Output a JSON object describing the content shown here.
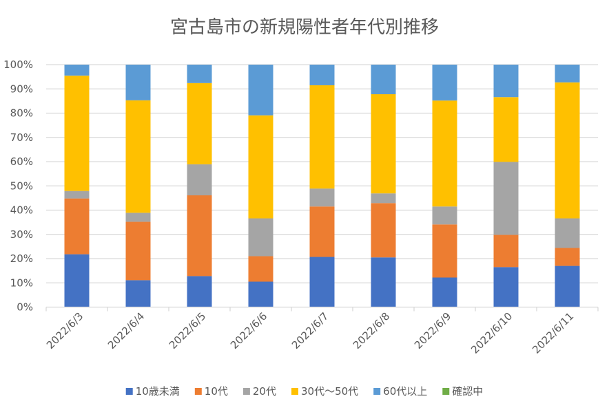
{
  "chart_data": {
    "type": "bar",
    "stacked": "percent",
    "title": "宮古島市の新規陽性者年代別推移",
    "xlabel": "",
    "ylabel": "",
    "ylim": [
      0,
      100
    ],
    "y_ticks": [
      "0%",
      "10%",
      "20%",
      "30%",
      "40%",
      "50%",
      "60%",
      "70%",
      "80%",
      "90%",
      "100%"
    ],
    "grid": true,
    "legend_position": "bottom",
    "categories": [
      "2022/6/3",
      "2022/6/4",
      "2022/6/5",
      "2022/6/6",
      "2022/6/7",
      "2022/6/8",
      "2022/6/9",
      "2022/6/10",
      "2022/6/11"
    ],
    "series": [
      {
        "name": "10歳未満",
        "color": "#4472C4",
        "values": [
          21.8,
          11.1,
          12.8,
          10.5,
          20.7,
          20.5,
          12.2,
          16.5,
          17.0
        ]
      },
      {
        "name": "10代",
        "color": "#ED7D31",
        "values": [
          23.0,
          24.1,
          33.3,
          10.5,
          20.8,
          22.4,
          21.9,
          13.3,
          7.4
        ]
      },
      {
        "name": "20代",
        "color": "#A5A5A5",
        "values": [
          3.1,
          3.7,
          12.8,
          15.6,
          7.4,
          4.0,
          7.4,
          30.1,
          12.2
        ]
      },
      {
        "name": "30代～50代",
        "color": "#FFC000",
        "values": [
          47.6,
          46.4,
          33.5,
          42.5,
          42.6,
          40.9,
          43.7,
          26.7,
          56.1
        ]
      },
      {
        "name": "60代以上",
        "color": "#5B9BD5",
        "values": [
          4.5,
          14.7,
          7.6,
          20.9,
          8.5,
          12.2,
          14.8,
          13.4,
          7.3
        ]
      },
      {
        "name": "確認中",
        "color": "#70AD47",
        "values": [
          0,
          0,
          0,
          0,
          0,
          0,
          0,
          0,
          0
        ]
      }
    ],
    "colors": {
      "gridline": "#D9D9D9",
      "axis": "#D9D9D9",
      "text": "#595959"
    }
  }
}
